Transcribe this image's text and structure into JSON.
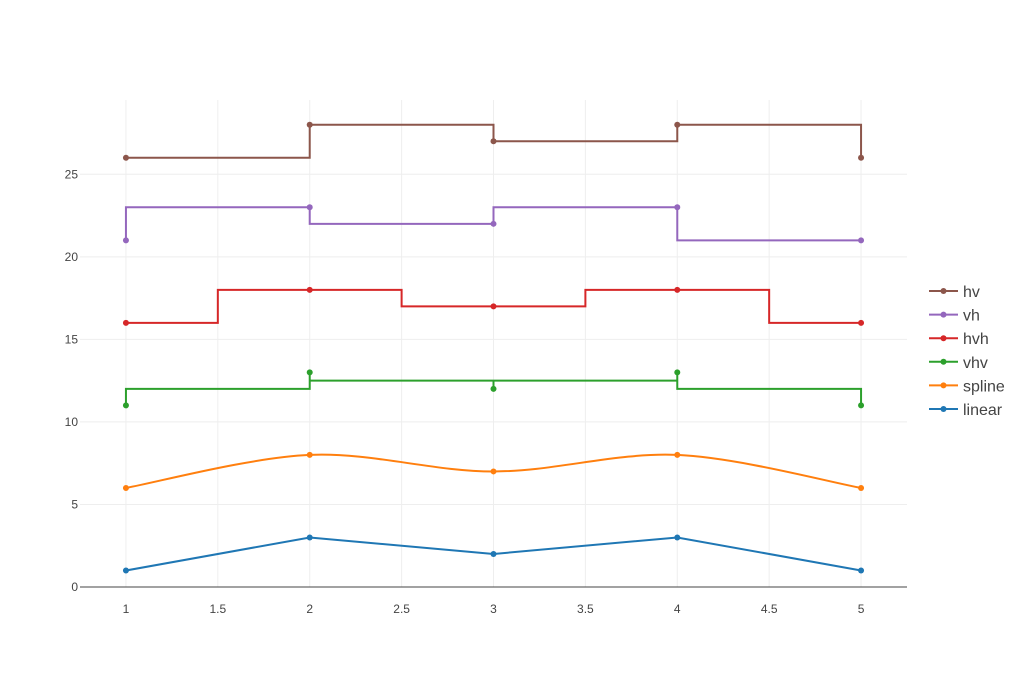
{
  "chart_data": {
    "type": "line",
    "title": "",
    "xlabel": "",
    "ylabel": "",
    "xlim": [
      0.75,
      5.25
    ],
    "ylim": [
      0,
      29.5
    ],
    "x_ticks": [
      1,
      1.5,
      2,
      2.5,
      3,
      3.5,
      4,
      4.5,
      5
    ],
    "x_tick_labels": [
      "1",
      "1.5",
      "2",
      "2.5",
      "3",
      "3.5",
      "4",
      "4.5",
      "5"
    ],
    "y_ticks": [
      0,
      5,
      10,
      15,
      20,
      25
    ],
    "y_tick_labels": [
      "0",
      "5",
      "10",
      "15",
      "20",
      "25"
    ],
    "grid": true,
    "legend_position": "right",
    "x": [
      1,
      2,
      3,
      4,
      5
    ],
    "series": [
      {
        "name": "linear",
        "shape": "linear",
        "color": "#1f77b4",
        "values": [
          1,
          3,
          2,
          3,
          1
        ]
      },
      {
        "name": "spline",
        "shape": "spline",
        "color": "#ff7f0e",
        "values": [
          6,
          8,
          7,
          8,
          6
        ]
      },
      {
        "name": "vhv",
        "shape": "vhv",
        "color": "#2ca02c",
        "values": [
          11,
          13,
          12,
          13,
          11
        ]
      },
      {
        "name": "hvh",
        "shape": "hvh",
        "color": "#d62728",
        "values": [
          16,
          18,
          17,
          18,
          16
        ]
      },
      {
        "name": "vh",
        "shape": "vh",
        "color": "#9467bd",
        "values": [
          21,
          23,
          22,
          23,
          21
        ]
      },
      {
        "name": "hv",
        "shape": "hv",
        "color": "#8c564b",
        "values": [
          26,
          28,
          27,
          28,
          26
        ]
      }
    ],
    "legend_order": [
      "hv",
      "vh",
      "hvh",
      "vhv",
      "spline",
      "linear"
    ]
  }
}
